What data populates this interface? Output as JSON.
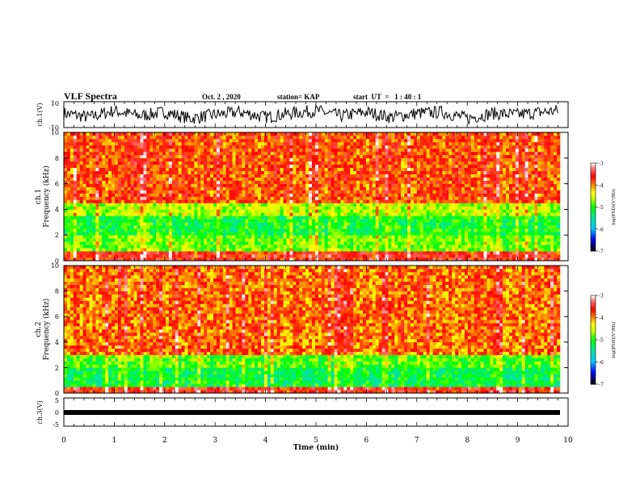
{
  "header": {
    "title": "VLF Spectra",
    "date": "Oct. 2 , 2020",
    "station": "station= KAP",
    "start": "start  UT  =   1 : 40 : 1"
  },
  "colorbar": {
    "label": "log(PSD)(V²/Hz)",
    "ticks": [
      -3,
      -4,
      -5,
      -6,
      -7
    ],
    "tick_labels": [
      "-3",
      "-4",
      "-5",
      "-6",
      "-7"
    ],
    "colors": [
      "#ffffff",
      "#ff0000",
      "#ffff00",
      "#00ff00",
      "#00ffff",
      "#0000ff",
      "#000000"
    ]
  },
  "chart_data": [
    {
      "type": "line",
      "panel": "ch1-waveform",
      "ylabel": "ch.1(V)",
      "ylim": [
        -10,
        10
      ],
      "y_tick_labels": [
        "10",
        "-10"
      ],
      "xlim": [
        0,
        10
      ],
      "series": [
        {
          "x": [
            0,
            0.5,
            1,
            1.5,
            2,
            2.5,
            3,
            3.5,
            4,
            4.5,
            5,
            5.5,
            6,
            6.5,
            7,
            7.5,
            8,
            8.5,
            9,
            9.5,
            9.8
          ],
          "values": [
            1,
            -2,
            3,
            -1,
            2,
            -3,
            0,
            2,
            -2,
            1,
            3,
            -1,
            2,
            -2,
            1,
            2,
            -3,
            1,
            0,
            2,
            3
          ]
        }
      ]
    },
    {
      "type": "heatmap",
      "panel": "ch1-spectrogram",
      "ylabel": "ch.1\nFrequency (kHz)",
      "ylim": [
        0,
        10
      ],
      "y_ticks": [
        0,
        2,
        4,
        6,
        8,
        10
      ],
      "y_tick_labels": [
        "0",
        "2",
        "4",
        "6",
        "8",
        "10"
      ],
      "xlim": [
        0,
        10
      ],
      "color_range": [
        -7,
        -3
      ],
      "band_levels": [
        {
          "from": 0,
          "to": 0.8,
          "level": -3.6
        },
        {
          "from": 0.8,
          "to": 2.0,
          "level": -4.8
        },
        {
          "from": 2.0,
          "to": 3.5,
          "level": -5.1
        },
        {
          "from": 3.5,
          "to": 4.5,
          "level": -4.6
        },
        {
          "from": 4.5,
          "to": 10,
          "level": -3.8
        }
      ]
    },
    {
      "type": "heatmap",
      "panel": "ch2-spectrogram",
      "ylabel": "ch.2\nFrequency (kHz)",
      "ylim": [
        0,
        10
      ],
      "y_ticks": [
        0,
        2,
        4,
        6,
        8,
        10
      ],
      "y_tick_labels": [
        "0",
        "2",
        "4",
        "6",
        "8",
        "10"
      ],
      "xlim": [
        0,
        10
      ],
      "color_range": [
        -7,
        -3
      ],
      "band_levels": [
        {
          "from": 0,
          "to": 0.4,
          "level": -3.6
        },
        {
          "from": 0.4,
          "to": 2.0,
          "level": -5.2
        },
        {
          "from": 2.0,
          "to": 3.0,
          "level": -4.9
        },
        {
          "from": 3.0,
          "to": 10,
          "level": -3.9
        }
      ]
    },
    {
      "type": "line",
      "panel": "ch3-waveform",
      "ylabel": "ch.3(V)",
      "ylim": [
        -5,
        5
      ],
      "y_tick_labels": [
        "5",
        "0",
        "-5"
      ],
      "xlim": [
        0,
        10
      ],
      "xlabel": "Time (min)",
      "x_tick_labels": [
        "0",
        "1",
        "2",
        "3",
        "4",
        "5",
        "6",
        "7",
        "8",
        "9",
        "10"
      ],
      "series": [
        {
          "x": [
            0,
            9.8
          ],
          "values": [
            0,
            0
          ]
        }
      ]
    }
  ]
}
